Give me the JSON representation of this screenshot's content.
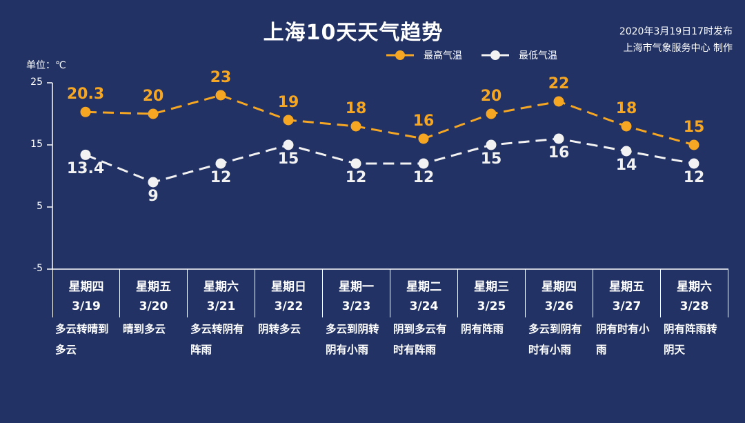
{
  "header": {
    "title": "上海10天天气趋势",
    "publish_time": "2020年3月19日17时发布",
    "publisher": "上海市气象服务中心 制作",
    "unit_label": "单位：℃"
  },
  "legend": {
    "high": {
      "label": "最高气温",
      "color": "#f5a623",
      "icon": "circle-marker-icon"
    },
    "low": {
      "label": "最低气温",
      "color": "#f2f2f2",
      "icon": "circle-marker-icon"
    }
  },
  "colors": {
    "background": "#223264",
    "high": "#f5a623",
    "low": "#f2f2f2",
    "axis": "#ffffff"
  },
  "chart_data": {
    "type": "line",
    "title": "上海10天天气趋势",
    "xlabel": "",
    "ylabel": "单位：℃",
    "ylim": [
      -5,
      25
    ],
    "yticks": [
      25,
      15,
      5,
      -5
    ],
    "grid": false,
    "legend_position": "top-right",
    "categories": [
      "3/19",
      "3/20",
      "3/21",
      "3/22",
      "3/23",
      "3/24",
      "3/25",
      "3/26",
      "3/27",
      "3/28"
    ],
    "weekdays": [
      "星期四",
      "星期五",
      "星期六",
      "星期日",
      "星期一",
      "星期二",
      "星期三",
      "星期四",
      "星期五",
      "星期六"
    ],
    "conditions": [
      "多云转晴到多云",
      "晴到多云",
      "多云转阴有阵雨",
      "阴转多云",
      "多云到阴转阴有小雨",
      "阴到多云有时有阵雨",
      "阴有阵雨",
      "多云到阴有时有小雨",
      "阴有时有小雨",
      "阴有阵雨转阴天"
    ],
    "series": [
      {
        "name": "最高气温",
        "values": [
          20.3,
          20,
          23,
          19,
          18,
          16,
          20,
          22,
          18,
          15
        ],
        "labels": [
          "20.3",
          "20",
          "23",
          "19",
          "18",
          "16",
          "20",
          "22",
          "18",
          "15"
        ],
        "style": "dashed",
        "color": "#f5a623"
      },
      {
        "name": "最低气温",
        "values": [
          13.4,
          9,
          12,
          15,
          12,
          12,
          15,
          16,
          14,
          12
        ],
        "labels": [
          "13.4",
          "9",
          "12",
          "15",
          "12",
          "12",
          "15",
          "16",
          "14",
          "12"
        ],
        "style": "dashed",
        "color": "#f2f2f2"
      }
    ]
  },
  "days": [
    {
      "weekday": "星期四",
      "date": "3/19",
      "condition": "多云转晴到多云"
    },
    {
      "weekday": "星期五",
      "date": "3/20",
      "condition": "晴到多云"
    },
    {
      "weekday": "星期六",
      "date": "3/21",
      "condition": "多云转阴有阵雨"
    },
    {
      "weekday": "星期日",
      "date": "3/22",
      "condition": "阴转多云"
    },
    {
      "weekday": "星期一",
      "date": "3/23",
      "condition": "多云到阴转阴有小雨"
    },
    {
      "weekday": "星期二",
      "date": "3/24",
      "condition": "阴到多云有时有阵雨"
    },
    {
      "weekday": "星期三",
      "date": "3/25",
      "condition": "阴有阵雨"
    },
    {
      "weekday": "星期四",
      "date": "3/26",
      "condition": "多云到阴有时有小雨"
    },
    {
      "weekday": "星期五",
      "date": "3/27",
      "condition": "阴有时有小雨"
    },
    {
      "weekday": "星期六",
      "date": "3/28",
      "condition": "阴有阵雨转阴天"
    }
  ]
}
